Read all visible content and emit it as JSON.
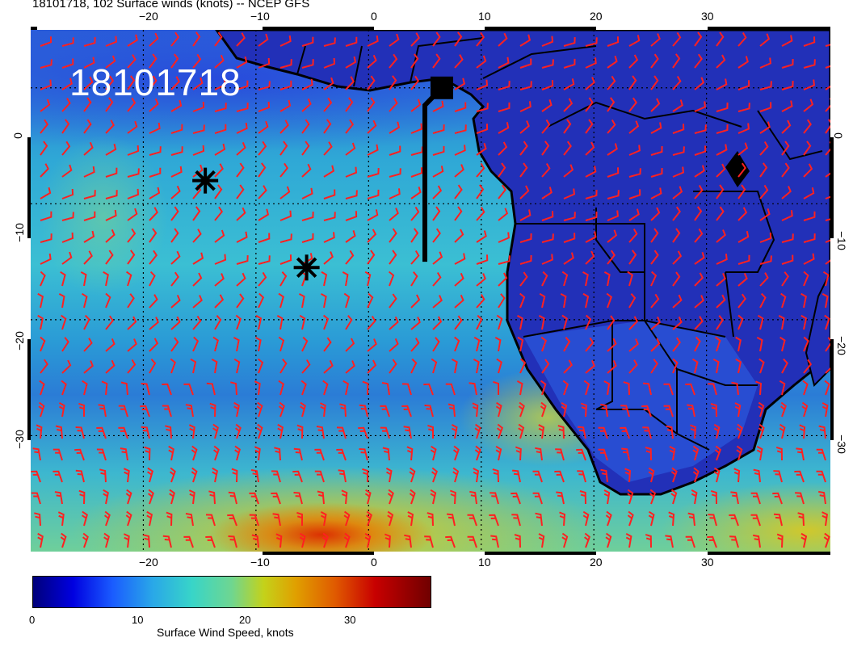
{
  "title": "18101718, 102 Surface winds (knots) -- NCEP GFS",
  "stamp": "18101718",
  "x_ticks": [
    "−20",
    "−10",
    "0",
    "10",
    "20",
    "30"
  ],
  "y_ticks": [
    "0",
    "−10",
    "−20",
    "−30"
  ],
  "colorbar": {
    "title": "Surface Wind Speed, knots",
    "labels": [
      "0",
      "10",
      "20",
      "30"
    ],
    "range": [
      0,
      38
    ]
  },
  "map": {
    "lon_range": [
      -30,
      41
    ],
    "lat_range": [
      -40,
      5
    ],
    "markers": [
      {
        "type": "storm",
        "lon": -14.5,
        "lat": -8
      },
      {
        "type": "storm",
        "lon": -5.5,
        "lat": -15.5
      },
      {
        "type": "square",
        "lon": 6.5,
        "lat": 0
      }
    ],
    "track_line": [
      [
        5,
        -15
      ],
      [
        5,
        -1.5
      ],
      [
        6.5,
        0
      ]
    ],
    "colors": {
      "land_dark": "#1a2fb0",
      "barb": "#ff0000",
      "ocean": "#2fb0d6"
    }
  }
}
